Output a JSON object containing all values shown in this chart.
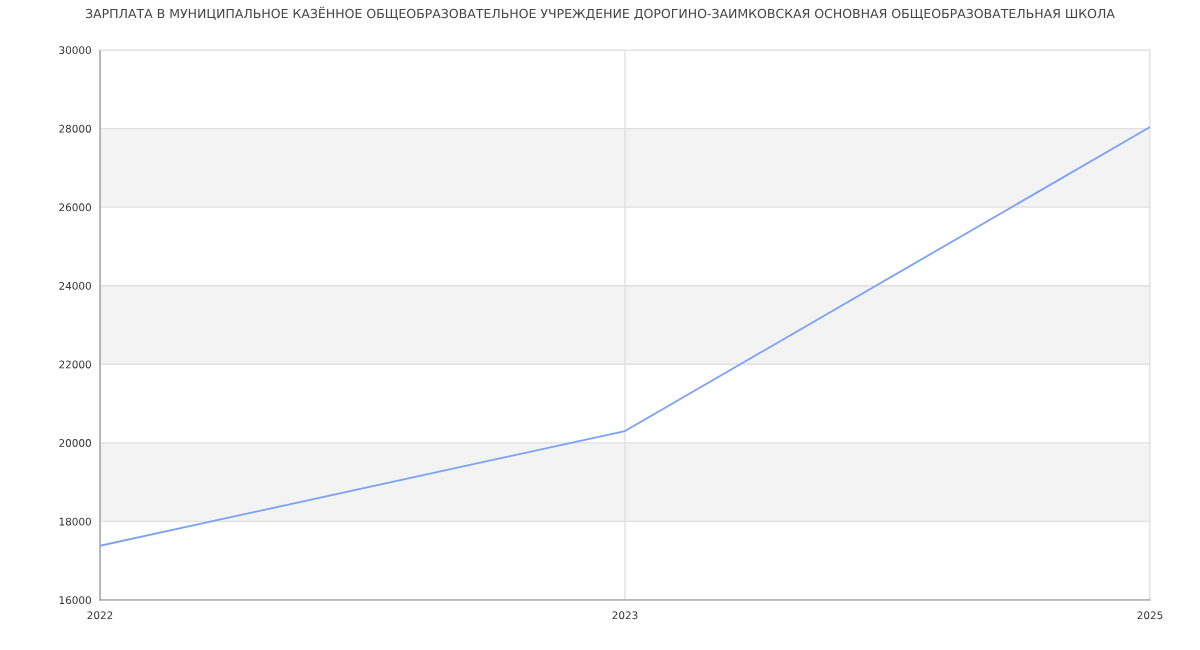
{
  "chart_data": {
    "type": "line",
    "title": "ЗАРПЛАТА В МУНИЦИПАЛЬНОЕ КАЗЁННОЕ ОБЩЕОБРАЗОВАТЕЛЬНОЕ УЧРЕЖДЕНИЕ ДОРОГИНО-ЗАИМКОВСКАЯ ОСНОВНАЯ ОБЩЕОБРАЗОВАТЕЛЬНАЯ ШКОЛА",
    "categories": [
      "2022",
      "2023",
      "2025"
    ],
    "series": [
      {
        "color": "#7aa1f5",
        "values": [
          17380,
          20300,
          28040
        ]
      }
    ],
    "ylim": [
      16000,
      30000
    ],
    "yticks": [
      16000,
      18000,
      20000,
      22000,
      24000,
      26000,
      28000,
      30000
    ],
    "grid": true,
    "bands": [
      {
        "axis": "y",
        "from": 18000,
        "to": 20000,
        "color": "#f3f3f3"
      },
      {
        "axis": "y",
        "from": 22000,
        "to": 24000,
        "color": "#f3f3f3"
      },
      {
        "axis": "y",
        "from": 26000,
        "to": 28000,
        "color": "#f3f3f3"
      }
    ]
  }
}
